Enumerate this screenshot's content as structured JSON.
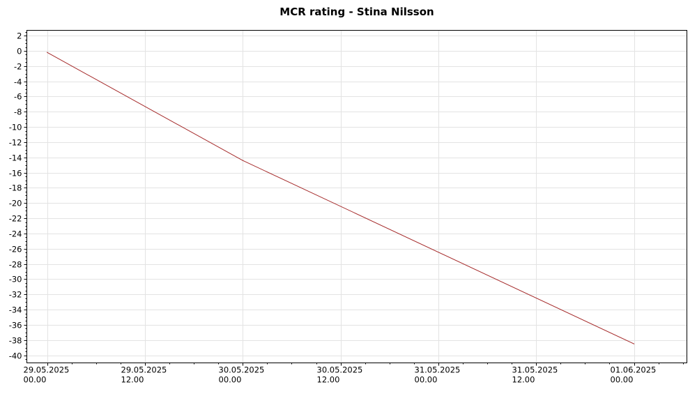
{
  "chart_data": {
    "type": "line",
    "title": "MCR rating - Stina Nilsson",
    "xlabel": "",
    "ylabel": "",
    "ylim": [
      -41,
      2.7
    ],
    "y_ticks": [
      2,
      0,
      -2,
      -4,
      -6,
      -8,
      -10,
      -12,
      -14,
      -16,
      -18,
      -20,
      -22,
      -24,
      -26,
      -28,
      -30,
      -32,
      -34,
      -36,
      -38,
      -40
    ],
    "y_tick_labels": [
      "2",
      "0",
      "-2",
      "-4",
      "-6",
      "-8",
      "-10",
      "-12",
      "-14",
      "-16",
      "-18",
      "-20",
      "-22",
      "-24",
      "-26",
      "-28",
      "-30",
      "-32",
      "-34",
      "-36",
      "-38",
      "-40"
    ],
    "xlim": [
      "2025-05-28T21:30",
      "2025-06-01T06:30"
    ],
    "x_ticks": [
      "2025-05-29T00:00",
      "2025-05-29T12:00",
      "2025-05-30T00:00",
      "2025-05-30T12:00",
      "2025-05-31T00:00",
      "2025-05-31T12:00",
      "2025-06-01T00:00"
    ],
    "x_tick_labels": [
      [
        "29.05.2025",
        "00.00"
      ],
      [
        "29.05.2025",
        "12.00"
      ],
      [
        "30.05.2025",
        "00.00"
      ],
      [
        "30.05.2025",
        "12.00"
      ],
      [
        "31.05.2025",
        "00.00"
      ],
      [
        "31.05.2025",
        "12.00"
      ],
      [
        "01.06.2025",
        "00.00"
      ]
    ],
    "grid": true,
    "series": [
      {
        "color": "#a52a2a",
        "points": [
          {
            "x": "2025-05-29T00:00",
            "y": -0.2
          },
          {
            "x": "2025-05-30T00:00",
            "y": -14.4
          },
          {
            "x": "2025-06-01T00:00",
            "y": -38.5
          }
        ]
      }
    ]
  }
}
